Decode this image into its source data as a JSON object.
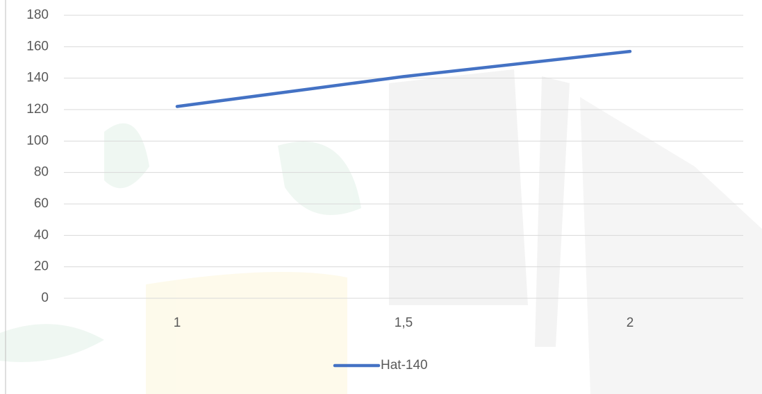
{
  "chart_data": {
    "type": "line",
    "categories": [
      "1",
      "1,5",
      "2"
    ],
    "series": [
      {
        "name": "Hat-140",
        "color": "#4472c4",
        "values": [
          122,
          141,
          157
        ]
      }
    ],
    "ylim": [
      0,
      180
    ],
    "yticks": [
      0,
      20,
      40,
      60,
      80,
      100,
      120,
      140,
      160,
      180
    ],
    "grid": true,
    "legend": "bottom"
  }
}
